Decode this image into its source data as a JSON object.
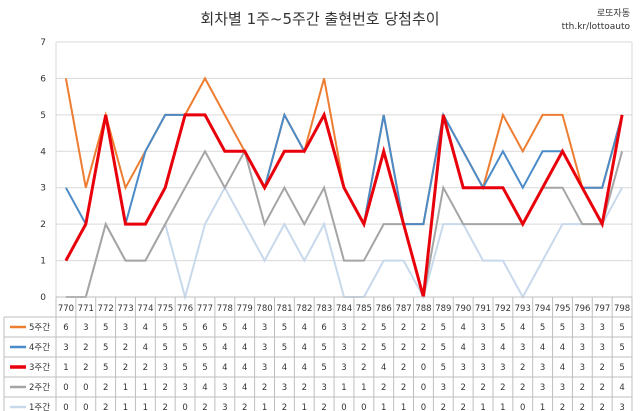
{
  "title": "회차별 1주~5주간 출현번호 당첨추이",
  "watermark": {
    "line1": "로또자동",
    "line2": "tth.kr/lottoauto"
  },
  "chart_data": {
    "type": "line",
    "title": "회차별 1주~5주간 출현번호 당첨추이",
    "xlabel": "",
    "ylabel": "",
    "ylim": [
      0,
      7
    ],
    "yticks": [
      0,
      1,
      2,
      3,
      4,
      5,
      6,
      7
    ],
    "grid": true,
    "legend": "left, in data table",
    "categories": [
      "770",
      "771",
      "772",
      "773",
      "774",
      "775",
      "776",
      "777",
      "778",
      "779",
      "780",
      "781",
      "782",
      "783",
      "784",
      "785",
      "786",
      "787",
      "788",
      "789",
      "790",
      "791",
      "792",
      "793",
      "794",
      "795",
      "796",
      "797",
      "798"
    ],
    "series": [
      {
        "name": "5주간",
        "color": "#ED7D31",
        "width": 2,
        "values": [
          6,
          3,
          5,
          3,
          4,
          5,
          5,
          6,
          5,
          4,
          3,
          5,
          4,
          6,
          3,
          2,
          5,
          2,
          2,
          5,
          4,
          3,
          5,
          4,
          5,
          5,
          3,
          3,
          5
        ]
      },
      {
        "name": "4주간",
        "color": "#4A8BC8",
        "width": 2,
        "values": [
          3,
          2,
          5,
          2,
          4,
          5,
          5,
          5,
          4,
          4,
          3,
          5,
          4,
          5,
          3,
          2,
          5,
          2,
          2,
          5,
          4,
          3,
          4,
          3,
          4,
          4,
          3,
          3,
          5
        ]
      },
      {
        "name": "3주간",
        "color": "#E8000B",
        "width": 3,
        "values": [
          1,
          2,
          5,
          2,
          2,
          3,
          5,
          5,
          4,
          4,
          3,
          4,
          4,
          5,
          3,
          2,
          4,
          2,
          0,
          5,
          3,
          3,
          3,
          2,
          3,
          4,
          3,
          2,
          5
        ]
      },
      {
        "name": "2주간",
        "color": "#A5A5A5",
        "width": 2,
        "values": [
          0,
          0,
          2,
          1,
          1,
          2,
          3,
          4,
          3,
          4,
          2,
          3,
          2,
          3,
          1,
          1,
          2,
          2,
          0,
          3,
          2,
          2,
          2,
          2,
          3,
          3,
          2,
          2,
          4
        ]
      },
      {
        "name": "1주간",
        "color": "#C8D9EC",
        "width": 2,
        "values": [
          0,
          0,
          2,
          1,
          1,
          2,
          0,
          2,
          3,
          2,
          1,
          2,
          1,
          2,
          0,
          0,
          1,
          1,
          0,
          2,
          2,
          1,
          1,
          0,
          1,
          2,
          2,
          2,
          3
        ]
      }
    ]
  }
}
